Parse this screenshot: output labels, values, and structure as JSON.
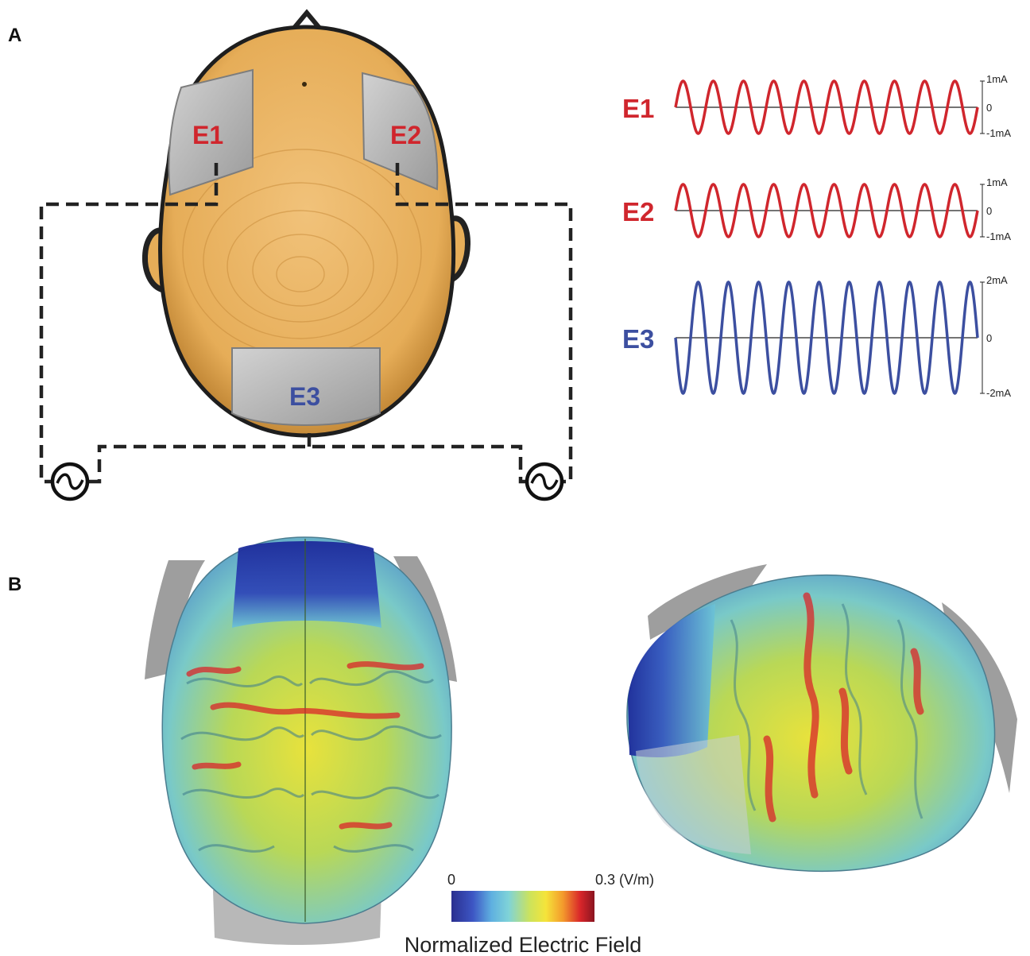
{
  "panel_a": {
    "letter": "A",
    "electrodes": [
      {
        "id": "e1",
        "label": "E1",
        "color": "#d0262d"
      },
      {
        "id": "e2",
        "label": "E2",
        "color": "#d0262d"
      },
      {
        "id": "e3",
        "label": "E3",
        "color": "#3c4fa0"
      }
    ],
    "waveforms": [
      {
        "label": "E1",
        "color": "#d0262d",
        "cycles": 10,
        "amplitude_mA": 1,
        "phase": "positive-first",
        "top_label": "1mA",
        "zero_label": "0",
        "bottom_label": "-1mA"
      },
      {
        "label": "E2",
        "color": "#d0262d",
        "cycles": 10,
        "amplitude_mA": 1,
        "phase": "positive-first",
        "top_label": "1mA",
        "zero_label": "0",
        "bottom_label": "-1mA"
      },
      {
        "label": "E3",
        "color": "#3c4fa0",
        "cycles": 10,
        "amplitude_mA": 2,
        "phase": "negative-first",
        "top_label": "2mA",
        "zero_label": "0",
        "bottom_label": "-2mA"
      }
    ],
    "colors": {
      "scalp": "#e6ad58",
      "scalp_dark": "#b57a2a",
      "pad": "#b8b8b8",
      "wire": "#222222"
    },
    "icons": [
      "ac-source-icon",
      "ac-source-icon"
    ]
  },
  "panel_b": {
    "letter": "B",
    "colorbar": {
      "min_label": "0",
      "max_label": "0.3 (V/m)",
      "title": "Normalized Electric Field",
      "colors": [
        "#2a2f8f",
        "#3d56c4",
        "#5fb0e0",
        "#7fd3d8",
        "#cde35b",
        "#f5e43a",
        "#f39a2c",
        "#d9262a",
        "#8a1420"
      ]
    }
  }
}
